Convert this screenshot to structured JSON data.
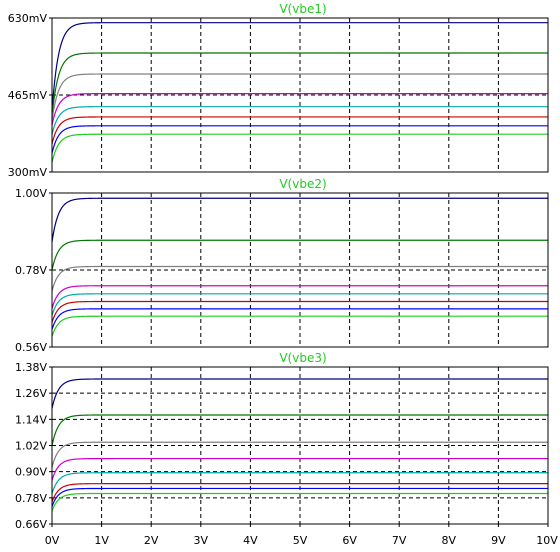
{
  "x_ticks": [
    "0V",
    "1V",
    "2V",
    "3V",
    "4V",
    "5V",
    "6V",
    "7V",
    "8V",
    "9V",
    "10V"
  ],
  "colors": {
    "title": "#22cc22",
    "frame": "#000000",
    "grid": "#000000",
    "traces": [
      "#000080",
      "#007700",
      "#808080",
      "#cc00cc",
      "#00aaaa",
      "#cc0000",
      "#0000ff",
      "#22cc22"
    ]
  },
  "chart_data": [
    {
      "type": "line",
      "title": "V(vbe1)",
      "xlim": [
        0,
        10
      ],
      "ylim": [
        0.3,
        0.63
      ],
      "y_ticks": [
        {
          "value": 0.63,
          "label": "630mV"
        },
        {
          "value": 0.465,
          "label": "465mV"
        },
        {
          "value": 0.3,
          "label": "300mV"
        }
      ],
      "series": [
        {
          "color": "#000080",
          "steady": 0.62,
          "start": 0.43
        },
        {
          "color": "#007700",
          "steady": 0.555,
          "start": 0.42
        },
        {
          "color": "#808080",
          "steady": 0.51,
          "start": 0.41
        },
        {
          "color": "#cc00cc",
          "steady": 0.468,
          "start": 0.4
        },
        {
          "color": "#00aaaa",
          "steady": 0.44,
          "start": 0.38
        },
        {
          "color": "#cc0000",
          "steady": 0.418,
          "start": 0.36
        },
        {
          "color": "#0000ff",
          "steady": 0.399,
          "start": 0.34
        },
        {
          "color": "#22cc22",
          "steady": 0.381,
          "start": 0.32
        }
      ]
    },
    {
      "type": "line",
      "title": "V(vbe2)",
      "xlim": [
        0,
        10
      ],
      "ylim": [
        0.56,
        1.0
      ],
      "y_ticks": [
        {
          "value": 1.0,
          "label": "1.00V"
        },
        {
          "value": 0.78,
          "label": "0.78V"
        },
        {
          "value": 0.56,
          "label": "0.56V"
        }
      ],
      "series": [
        {
          "color": "#000080",
          "steady": 0.985,
          "start": 0.86
        },
        {
          "color": "#007700",
          "steady": 0.865,
          "start": 0.78
        },
        {
          "color": "#808080",
          "steady": 0.79,
          "start": 0.72
        },
        {
          "color": "#cc00cc",
          "steady": 0.735,
          "start": 0.67
        },
        {
          "color": "#00aaaa",
          "steady": 0.712,
          "start": 0.65
        },
        {
          "color": "#cc0000",
          "steady": 0.69,
          "start": 0.63
        },
        {
          "color": "#0000ff",
          "steady": 0.669,
          "start": 0.61
        },
        {
          "color": "#22cc22",
          "steady": 0.648,
          "start": 0.59
        }
      ]
    },
    {
      "type": "line",
      "title": "V(vbe3)",
      "xlim": [
        0,
        10
      ],
      "ylim": [
        0.66,
        1.38
      ],
      "y_ticks": [
        {
          "value": 1.38,
          "label": "1.38V"
        },
        {
          "value": 1.26,
          "label": "1.26V"
        },
        {
          "value": 1.14,
          "label": "1.14V"
        },
        {
          "value": 1.02,
          "label": "1.02V"
        },
        {
          "value": 0.9,
          "label": "0.90V"
        },
        {
          "value": 0.78,
          "label": "0.78V"
        },
        {
          "value": 0.66,
          "label": "0.66V"
        }
      ],
      "series": [
        {
          "color": "#000080",
          "steady": 1.325,
          "start": 1.19
        },
        {
          "color": "#007700",
          "steady": 1.16,
          "start": 1.02
        },
        {
          "color": "#808080",
          "steady": 1.035,
          "start": 0.92
        },
        {
          "color": "#cc00cc",
          "steady": 0.96,
          "start": 0.86
        },
        {
          "color": "#00aaaa",
          "steady": 0.895,
          "start": 0.8
        },
        {
          "color": "#cc0000",
          "steady": 0.845,
          "start": 0.76
        },
        {
          "color": "#0000ff",
          "steady": 0.823,
          "start": 0.74
        },
        {
          "color": "#22cc22",
          "steady": 0.8,
          "start": 0.72
        }
      ]
    }
  ]
}
